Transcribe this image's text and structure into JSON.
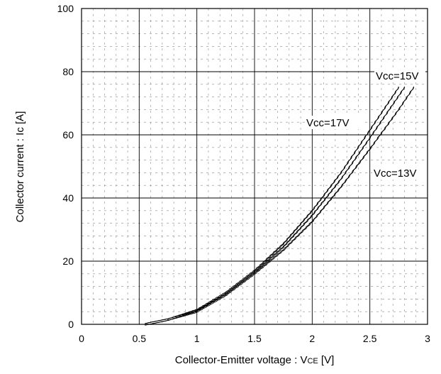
{
  "chart_data": {
    "type": "line",
    "title": "",
    "xlabel": "Collector-Emitter voltage : V",
    "xlabel_sub": "CE",
    "xlabel_unit": " [V]",
    "ylabel": "Collector current : Ic [A]",
    "xlim": [
      0,
      3
    ],
    "ylim": [
      0,
      100
    ],
    "xticks": [
      0,
      0.5,
      1,
      1.5,
      2,
      2.5,
      3
    ],
    "xtick_labels": [
      "0",
      "0.5",
      "1",
      "1.5",
      "2",
      "2.5",
      "3"
    ],
    "yticks": [
      0,
      20,
      40,
      60,
      80,
      100
    ],
    "ytick_labels": [
      "0",
      "20",
      "40",
      "60",
      "80",
      "100"
    ],
    "grid": true,
    "minor_grid": "dashed",
    "series": [
      {
        "name": "Vcc=17V",
        "x": [
          0.55,
          0.75,
          1.0,
          1.25,
          1.5,
          1.75,
          2.0,
          2.25,
          2.5,
          2.75
        ],
        "y": [
          0.0,
          1.5,
          4.5,
          10.0,
          17.0,
          25.5,
          36.0,
          48.0,
          61.5,
          75.0
        ]
      },
      {
        "name": "Vcc=15V",
        "x": [
          0.55,
          0.75,
          1.0,
          1.25,
          1.5,
          1.75,
          2.0,
          2.25,
          2.5,
          2.8
        ],
        "y": [
          0.0,
          1.5,
          4.3,
          9.6,
          16.5,
          24.5,
          34.5,
          46.0,
          59.0,
          75.0
        ]
      },
      {
        "name": "Vcc=13V",
        "x": [
          0.55,
          0.75,
          1.0,
          1.25,
          1.5,
          1.75,
          2.0,
          2.25,
          2.5,
          2.75,
          2.88
        ],
        "y": [
          0.0,
          1.5,
          4.0,
          9.2,
          16.0,
          23.5,
          32.5,
          43.5,
          55.5,
          68.0,
          75.0
        ]
      }
    ],
    "annotations": [
      "Vcc=15V",
      "Vcc=17V",
      "Vcc=13V"
    ]
  }
}
